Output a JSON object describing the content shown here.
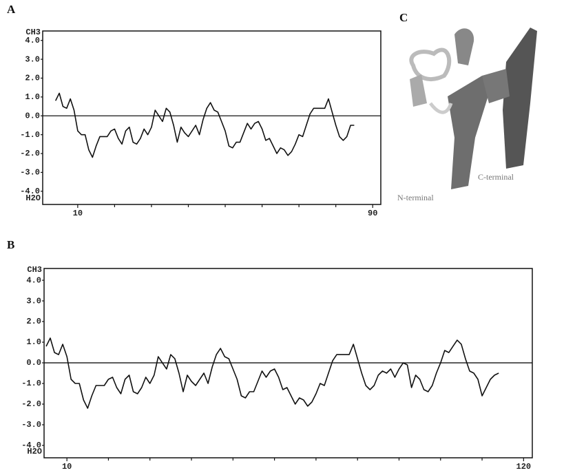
{
  "chart_data": [
    {
      "type": "line",
      "panel_label": "A",
      "y_top_label": "CH3",
      "y_bottom_label": "H2O",
      "color": "#111111",
      "x": [
        4,
        5,
        6,
        7,
        8,
        9,
        10,
        11,
        12,
        13,
        14,
        15,
        16,
        17,
        18,
        19,
        20,
        21,
        22,
        23,
        24,
        25,
        26,
        27,
        28,
        29,
        30,
        31,
        32,
        33,
        34,
        35,
        36,
        37,
        38,
        39,
        40,
        41,
        42,
        43,
        44,
        45,
        46,
        47,
        48,
        49,
        50,
        51,
        52,
        53,
        54,
        55,
        56,
        57,
        58,
        59,
        60,
        61,
        62,
        63,
        64,
        65,
        66,
        67,
        68,
        69,
        70,
        71,
        72,
        73,
        74,
        75,
        76,
        77,
        78,
        79,
        80,
        81,
        82,
        83,
        84,
        85
      ],
      "values": [
        0.8,
        1.2,
        0.5,
        0.4,
        0.9,
        0.3,
        -0.8,
        -1.0,
        -1.0,
        -1.8,
        -2.2,
        -1.6,
        -1.1,
        -1.1,
        -1.1,
        -0.8,
        -0.7,
        -1.2,
        -1.5,
        -0.8,
        -0.6,
        -1.4,
        -1.5,
        -1.2,
        -0.7,
        -1.0,
        -0.6,
        0.3,
        0.0,
        -0.3,
        0.4,
        0.2,
        -0.5,
        -1.4,
        -0.6,
        -0.9,
        -1.1,
        -0.8,
        -0.5,
        -1.0,
        -0.2,
        0.4,
        0.7,
        0.3,
        0.2,
        -0.3,
        -0.8,
        -1.6,
        -1.7,
        -1.4,
        -1.4,
        -0.9,
        -0.4,
        -0.7,
        -0.4,
        -0.3,
        -0.7,
        -1.3,
        -1.2,
        -1.6,
        -2.0,
        -1.7,
        -1.8,
        -2.1,
        -1.9,
        -1.5,
        -1.0,
        -1.1,
        -0.5,
        0.1,
        0.4,
        0.4,
        0.4,
        0.4,
        0.9,
        0.2,
        -0.5,
        -1.1,
        -1.3,
        -1.1,
        -0.5,
        -0.5
      ],
      "xlim": [
        0.5,
        92.2
      ],
      "ylim": [
        -4.7,
        4.5
      ],
      "xticks": [
        10,
        90
      ],
      "xminor_ticks": [
        20,
        30,
        40,
        50,
        60,
        70,
        80
      ],
      "yticks": [
        {
          "value": 4,
          "label": "4.0"
        },
        {
          "value": 3,
          "label": "3.0"
        },
        {
          "value": 2,
          "label": "2.0"
        },
        {
          "value": 1,
          "label": "1.0"
        },
        {
          "value": 0,
          "label": "0.0"
        },
        {
          "value": -1,
          "label": "-1.0"
        },
        {
          "value": -2,
          "label": "-2.0"
        },
        {
          "value": -3,
          "label": "-3.0"
        },
        {
          "value": -4,
          "label": "-4.0"
        }
      ]
    },
    {
      "type": "line",
      "panel_label": "B",
      "y_top_label": "CH3",
      "y_bottom_label": "H2O",
      "color": "#111111",
      "x": [
        5,
        6,
        7,
        8,
        9,
        10,
        11,
        12,
        13,
        14,
        15,
        16,
        17,
        18,
        19,
        20,
        21,
        22,
        23,
        24,
        25,
        26,
        27,
        28,
        29,
        30,
        31,
        32,
        33,
        34,
        35,
        36,
        37,
        38,
        39,
        40,
        41,
        42,
        43,
        44,
        45,
        46,
        47,
        48,
        49,
        50,
        51,
        52,
        53,
        54,
        55,
        56,
        57,
        58,
        59,
        60,
        61,
        62,
        63,
        64,
        65,
        66,
        67,
        68,
        69,
        70,
        71,
        72,
        73,
        74,
        75,
        76,
        77,
        78,
        79,
        80,
        81,
        82,
        83,
        84,
        85,
        86,
        87,
        88,
        89,
        90,
        91,
        92,
        93,
        94,
        95,
        96,
        97,
        98,
        99,
        100,
        101,
        102,
        103,
        104,
        105,
        106,
        107,
        108,
        109,
        110,
        111,
        112,
        113,
        114
      ],
      "values": [
        0.8,
        1.2,
        0.5,
        0.4,
        0.9,
        0.3,
        -0.8,
        -1.0,
        -1.0,
        -1.8,
        -2.2,
        -1.6,
        -1.1,
        -1.1,
        -1.1,
        -0.8,
        -0.7,
        -1.2,
        -1.5,
        -0.8,
        -0.6,
        -1.4,
        -1.5,
        -1.2,
        -0.7,
        -1.0,
        -0.6,
        0.3,
        0.0,
        -0.3,
        0.4,
        0.2,
        -0.5,
        -1.4,
        -0.6,
        -0.9,
        -1.1,
        -0.8,
        -0.5,
        -1.0,
        -0.2,
        0.4,
        0.7,
        0.3,
        0.2,
        -0.3,
        -0.8,
        -1.6,
        -1.7,
        -1.4,
        -1.4,
        -0.9,
        -0.4,
        -0.7,
        -0.4,
        -0.3,
        -0.7,
        -1.3,
        -1.2,
        -1.6,
        -2.0,
        -1.7,
        -1.8,
        -2.1,
        -1.9,
        -1.5,
        -1.0,
        -1.1,
        -0.5,
        0.1,
        0.4,
        0.4,
        0.4,
        0.4,
        0.9,
        0.2,
        -0.5,
        -1.1,
        -1.3,
        -1.1,
        -0.6,
        -0.4,
        -0.5,
        -0.3,
        -0.7,
        -0.3,
        0.0,
        -0.1,
        -1.2,
        -0.6,
        -0.8,
        -1.3,
        -1.4,
        -1.1,
        -0.5,
        0.0,
        0.6,
        0.5,
        0.8,
        1.1,
        0.9,
        0.2,
        -0.4,
        -0.5,
        -0.8,
        -1.6,
        -1.2,
        -0.8,
        -0.6,
        -0.5
      ],
      "xlim": [
        4.5,
        122.1
      ],
      "ylim": [
        -4.6,
        4.57
      ],
      "xticks": [
        10,
        120
      ],
      "xminor_ticks": [
        20,
        30,
        40,
        50,
        60,
        70,
        80,
        90,
        100,
        110
      ],
      "yticks": [
        {
          "value": 4,
          "label": "4.0"
        },
        {
          "value": 3,
          "label": "3.0"
        },
        {
          "value": 2,
          "label": "2.0"
        },
        {
          "value": 1,
          "label": "1.0"
        },
        {
          "value": 0,
          "label": "0.0"
        },
        {
          "value": -1,
          "label": "-1.0"
        },
        {
          "value": -2,
          "label": "-2.0"
        },
        {
          "value": -3,
          "label": "-3.0"
        },
        {
          "value": -4,
          "label": "-4.0"
        }
      ]
    }
  ],
  "structure": {
    "panel_label": "C",
    "n_label": "N-terminal",
    "c_label": "C-terminal"
  }
}
